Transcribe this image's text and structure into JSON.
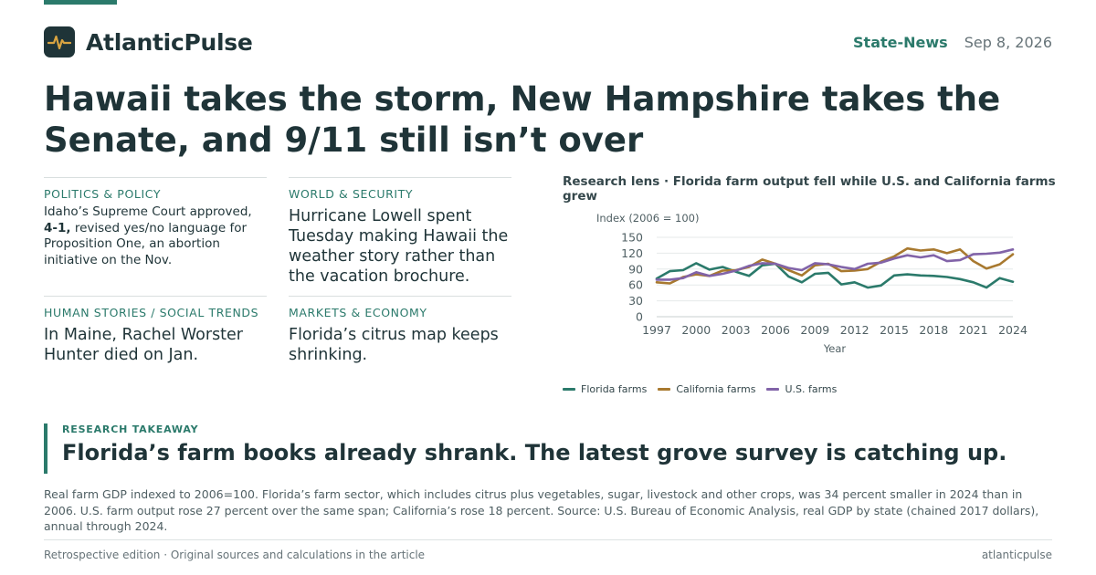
{
  "brand": {
    "name": "AtlanticPulse",
    "logo_icon": "pulse-icon"
  },
  "header": {
    "section": "State-News",
    "date": "Sep 8, 2026"
  },
  "headline": "Hawaii takes the storm, New Hampshire takes the Senate, and 9/11 still isn’t over",
  "cards": [
    {
      "kicker": "POLITICS & POLICY",
      "text_before": "Idaho’s Supreme Court approved, ",
      "text_bold": "4-1,",
      "text_after": " revised yes/no language for Proposition One, an abortion initiative on the Nov."
    },
    {
      "kicker": "WORLD & SECURITY",
      "text": "Hurricane Lowell spent Tuesday making Hawaii the weather story rather than the vacation brochure."
    },
    {
      "kicker": "HUMAN STORIES / SOCIAL TRENDS",
      "text": "In Maine, Rachel Worster Hunter died on Jan."
    },
    {
      "kicker": "MARKETS & ECONOMY",
      "text": "Florida’s citrus map keeps shrinking."
    }
  ],
  "chart_title": "Research lens · Florida farm output fell while U.S. and California farms grew",
  "chart_data": {
    "type": "line",
    "title": "Research lens · Florida farm output fell while U.S. and California farms grew",
    "ylabel": "Index (2006 = 100)",
    "xlabel": "Year",
    "xlim": [
      1997,
      2024
    ],
    "ylim": [
      0,
      150
    ],
    "x_ticks": [
      1997,
      2000,
      2003,
      2006,
      2009,
      2012,
      2015,
      2018,
      2021,
      2024
    ],
    "y_ticks": [
      0,
      30,
      60,
      90,
      120,
      150
    ],
    "grid": true,
    "legend_position": "bottom-left",
    "x": [
      1997,
      1998,
      1999,
      2000,
      2001,
      2002,
      2003,
      2004,
      2005,
      2006,
      2007,
      2008,
      2009,
      2010,
      2011,
      2012,
      2013,
      2014,
      2015,
      2016,
      2017,
      2018,
      2019,
      2020,
      2021,
      2022,
      2023,
      2024
    ],
    "series": [
      {
        "name": "Florida farms",
        "color": "#2b7a6b",
        "values": [
          72,
          86,
          88,
          101,
          89,
          94,
          85,
          77,
          97,
          100,
          76,
          65,
          81,
          83,
          61,
          65,
          55,
          59,
          78,
          80,
          78,
          77,
          75,
          71,
          65,
          55,
          73,
          66
        ]
      },
      {
        "name": "California farms",
        "color": "#a8792f",
        "values": [
          65,
          63,
          75,
          80,
          77,
          87,
          88,
          94,
          108,
          100,
          88,
          78,
          97,
          100,
          86,
          87,
          90,
          104,
          114,
          129,
          125,
          127,
          120,
          127,
          105,
          91,
          99,
          118
        ]
      },
      {
        "name": "U.S. farms",
        "color": "#8163a8",
        "values": [
          70,
          70,
          73,
          84,
          77,
          81,
          87,
          96,
          101,
          100,
          92,
          88,
          101,
          99,
          94,
          90,
          100,
          102,
          110,
          116,
          112,
          116,
          105,
          107,
          118,
          119,
          121,
          127
        ]
      }
    ]
  },
  "takeaway": {
    "label": "RESEARCH TAKEAWAY",
    "text": "Florida’s farm books already shrank. The latest grove survey is catching up."
  },
  "footnote": "Real farm GDP indexed to 2006=100. Florida’s farm sector, which includes citrus plus vegetables, sugar, livestock and other crops, was 34 percent smaller in 2024 than in 2006. U.S. farm output rose 27 percent over the same span; California’s rose 18 percent. Source: U.S. Bureau of Economic Analysis, real GDP by state (chained 2017 dollars), annual through 2024.",
  "footer": {
    "left": "Retrospective edition · Original sources and calculations in the article",
    "right": "atlanticpulse"
  },
  "colors": {
    "accent": "#2b7a6b",
    "ink": "#1f3438",
    "florida": "#2b7a6b",
    "california": "#a8792f",
    "us": "#8163a8"
  }
}
